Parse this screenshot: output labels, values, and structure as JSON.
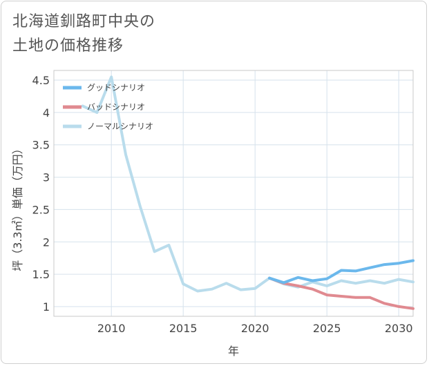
{
  "title": {
    "line1": "北海道釧路町中央の",
    "line2": "土地の価格推移"
  },
  "chart_data": {
    "type": "line",
    "xlabel": "年",
    "ylabel": "坪（3.3㎡）単価（万円）",
    "xlim": [
      2006,
      2031
    ],
    "ylim": [
      0.85,
      4.65
    ],
    "x_ticks": [
      2010,
      2015,
      2020,
      2025,
      2030
    ],
    "y_ticks": [
      1,
      1.5,
      2,
      2.5,
      3,
      3.5,
      4,
      4.5
    ],
    "x_tick_labels": [
      "2010",
      "2015",
      "2020",
      "2025",
      "2030"
    ],
    "y_tick_labels": [
      "1",
      "1.5",
      "2",
      "2.5",
      "3",
      "3.5",
      "4",
      "4.5"
    ],
    "grid": true,
    "legend_position": "top-left",
    "series": [
      {
        "name": "グッドシナリオ",
        "color": "#6bb8ec",
        "x": [
          2021,
          2022,
          2023,
          2024,
          2025,
          2026,
          2027,
          2028,
          2029,
          2030,
          2031
        ],
        "y": [
          1.44,
          1.37,
          1.45,
          1.4,
          1.43,
          1.56,
          1.55,
          1.6,
          1.65,
          1.67,
          1.71
        ]
      },
      {
        "name": "バッドシナリオ",
        "color": "#e08a90",
        "x": [
          2021,
          2022,
          2023,
          2024,
          2025,
          2026,
          2027,
          2028,
          2029,
          2030,
          2031
        ],
        "y": [
          1.44,
          1.36,
          1.32,
          1.27,
          1.18,
          1.16,
          1.14,
          1.14,
          1.05,
          1.0,
          0.97
        ]
      },
      {
        "name": "ノーマルシナリオ",
        "color": "#b9dcec",
        "x": [
          2008,
          2009,
          2010,
          2011,
          2012,
          2013,
          2014,
          2015,
          2016,
          2017,
          2018,
          2019,
          2020,
          2021,
          2022,
          2023,
          2024,
          2025,
          2026,
          2027,
          2028,
          2029,
          2030,
          2031
        ],
        "y": [
          4.1,
          4.0,
          4.55,
          3.35,
          2.55,
          1.85,
          1.95,
          1.35,
          1.24,
          1.27,
          1.36,
          1.26,
          1.28,
          1.44,
          1.35,
          1.3,
          1.38,
          1.32,
          1.4,
          1.36,
          1.4,
          1.36,
          1.42,
          1.38
        ]
      }
    ]
  }
}
